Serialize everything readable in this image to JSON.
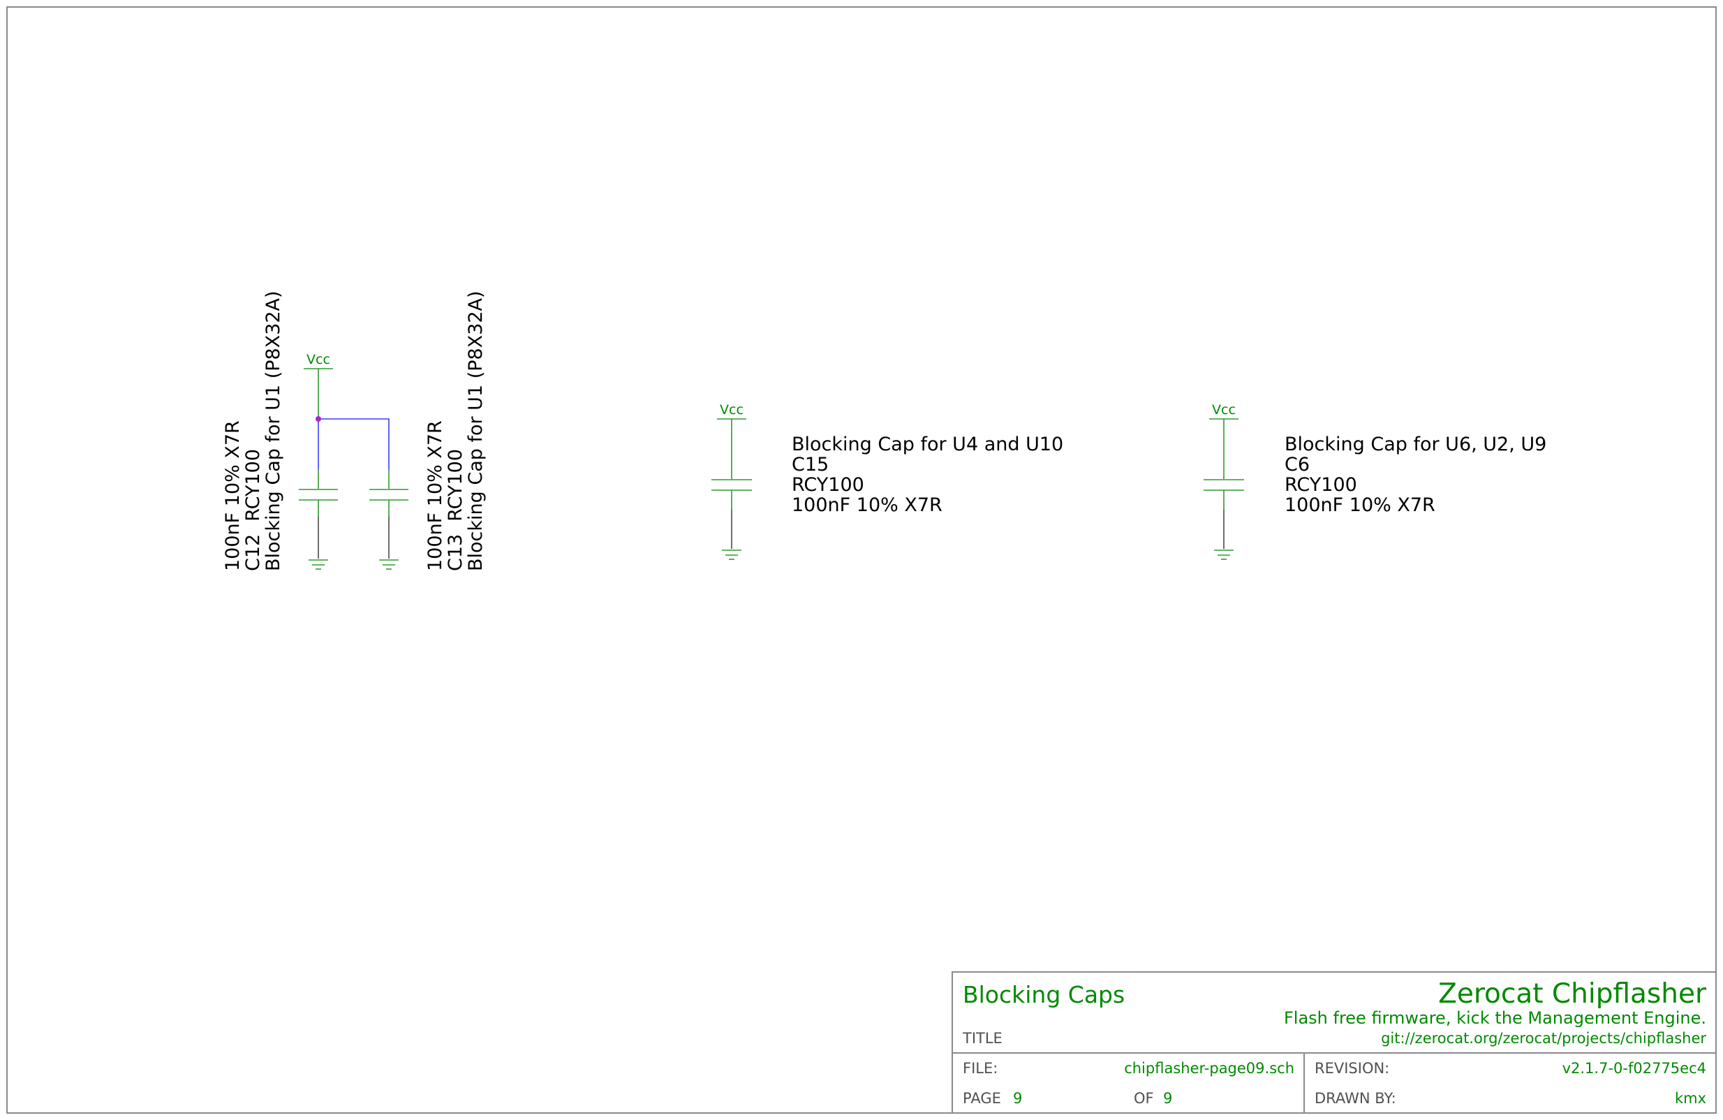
{
  "components": {
    "c12": {
      "ref": "C12",
      "footprint": "RCY100",
      "value": "100nF 10% X7R",
      "description": "Blocking Cap for U1 (P8X32A)",
      "power_net": "Vcc"
    },
    "c13": {
      "ref": "C13",
      "footprint": "RCY100",
      "value": "100nF 10% X7R",
      "description": "Blocking Cap for U1 (P8X32A)"
    },
    "c15": {
      "ref": "C15",
      "footprint": "RCY100",
      "value": "100nF 10% X7R",
      "description": "Blocking Cap for U4 and U10",
      "power_net": "Vcc"
    },
    "c6": {
      "ref": "C6",
      "footprint": "RCY100",
      "value": "100nF 10% X7R",
      "description": "Blocking Cap for U6, U2, U9",
      "power_net": "Vcc"
    }
  },
  "title_block": {
    "title": "Blocking Caps",
    "title_caption": "TITLE",
    "project": "Zerocat Chipflasher",
    "tagline": "Flash free firmware, kick the Management Engine.",
    "url": "git://zerocat.org/zerocat/projects/chipflasher",
    "file_caption": "FILE:",
    "file": "chipflasher-page09.sch",
    "revision_caption": "REVISION:",
    "revision": "v2.1.7-0-f02775ec4",
    "page_caption": "PAGE",
    "page": "9",
    "of_caption": "OF",
    "of": "9",
    "drawn_by_caption": "DRAWN BY:",
    "drawn_by": "kmx"
  },
  "colors": {
    "symbol": "#2f9a2f",
    "label_text": "#000000",
    "title_text": "#008a00",
    "wire": "#3a3aff",
    "junction": "#b020d0",
    "border": "#8a8a8a",
    "ground_lead": "#4a4a4a"
  }
}
